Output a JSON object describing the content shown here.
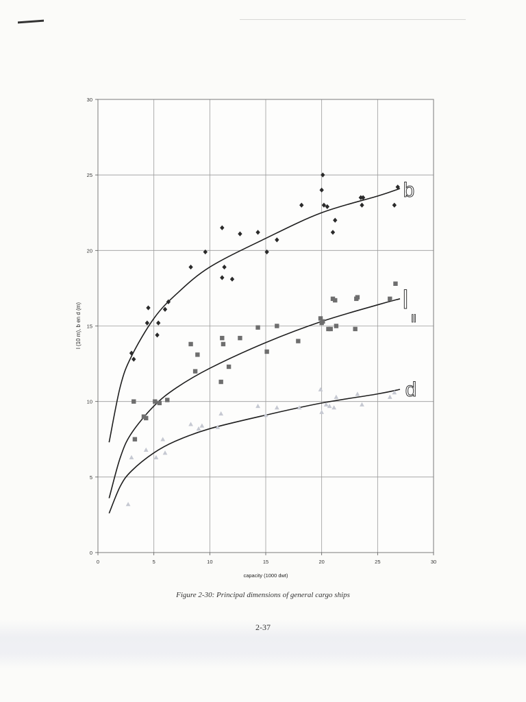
{
  "document": {
    "caption": "Figure 2-30: Principal dimensions of general cargo ships",
    "page_number": "2-37"
  },
  "chart_data": {
    "type": "scatter",
    "title": "",
    "xlabel": "capacity (1000 dwt)",
    "ylabel": "l (10 m), b en d (m)",
    "xlim": [
      0,
      30
    ],
    "ylim": [
      0,
      30
    ],
    "xticks": [
      0,
      5,
      10,
      15,
      20,
      25,
      30
    ],
    "yticks": [
      0,
      5,
      10,
      15,
      20,
      25,
      30
    ],
    "grid": true,
    "series": [
      {
        "name": "b",
        "marker": "diamond",
        "color": "#2a2a2a",
        "points": [
          [
            3.0,
            13.2
          ],
          [
            3.2,
            12.8
          ],
          [
            4.4,
            15.2
          ],
          [
            4.5,
            16.2
          ],
          [
            5.3,
            14.4
          ],
          [
            5.4,
            15.2
          ],
          [
            6.0,
            16.1
          ],
          [
            6.3,
            16.6
          ],
          [
            8.3,
            18.9
          ],
          [
            9.6,
            19.9
          ],
          [
            11.1,
            21.5
          ],
          [
            11.1,
            18.2
          ],
          [
            11.3,
            18.9
          ],
          [
            12.0,
            18.1
          ],
          [
            12.7,
            21.1
          ],
          [
            14.3,
            21.2
          ],
          [
            15.1,
            19.9
          ],
          [
            16.0,
            20.7
          ],
          [
            18.2,
            23.0
          ],
          [
            20.0,
            24.0
          ],
          [
            20.1,
            25.0
          ],
          [
            20.2,
            23.0
          ],
          [
            20.5,
            22.9
          ],
          [
            21.0,
            21.2
          ],
          [
            21.2,
            22.0
          ],
          [
            23.5,
            23.5
          ],
          [
            23.6,
            23.0
          ],
          [
            23.7,
            23.5
          ],
          [
            26.5,
            23.0
          ],
          [
            26.8,
            24.2
          ]
        ],
        "fit": [
          [
            1,
            7.3
          ],
          [
            2,
            11.0
          ],
          [
            3,
            13.0
          ],
          [
            5,
            15.5
          ],
          [
            7,
            17.1
          ],
          [
            10,
            18.9
          ],
          [
            15,
            20.8
          ],
          [
            20,
            22.5
          ],
          [
            25,
            23.6
          ],
          [
            27,
            24.1
          ]
        ]
      },
      {
        "name": "l",
        "marker": "square",
        "color": "#6e6e6e",
        "points": [
          [
            3.2,
            10.0
          ],
          [
            3.3,
            7.5
          ],
          [
            4.1,
            9.0
          ],
          [
            4.3,
            8.9
          ],
          [
            5.1,
            10.0
          ],
          [
            5.5,
            9.9
          ],
          [
            6.2,
            10.1
          ],
          [
            8.3,
            13.8
          ],
          [
            8.7,
            12.0
          ],
          [
            8.9,
            13.1
          ],
          [
            11.0,
            11.3
          ],
          [
            11.1,
            14.2
          ],
          [
            11.2,
            13.8
          ],
          [
            11.7,
            12.3
          ],
          [
            12.7,
            14.2
          ],
          [
            14.3,
            14.9
          ],
          [
            15.1,
            13.3
          ],
          [
            16.0,
            15.0
          ],
          [
            17.9,
            14.0
          ],
          [
            19.9,
            15.5
          ],
          [
            20.0,
            15.2
          ],
          [
            20.1,
            15.3
          ],
          [
            20.6,
            14.8
          ],
          [
            20.8,
            14.8
          ],
          [
            21.0,
            16.8
          ],
          [
            21.2,
            16.7
          ],
          [
            21.3,
            15.0
          ],
          [
            23.0,
            14.8
          ],
          [
            23.1,
            16.8
          ],
          [
            23.2,
            16.9
          ],
          [
            26.1,
            16.8
          ],
          [
            26.6,
            17.8
          ]
        ],
        "fit": [
          [
            1,
            3.6
          ],
          [
            2,
            6.3
          ],
          [
            3,
            7.9
          ],
          [
            5,
            9.7
          ],
          [
            7,
            10.9
          ],
          [
            10,
            12.2
          ],
          [
            15,
            13.9
          ],
          [
            20,
            15.3
          ],
          [
            25,
            16.4
          ],
          [
            27,
            16.8
          ]
        ]
      },
      {
        "name": "d",
        "marker": "triangle",
        "color": "#c6c9d2",
        "points": [
          [
            2.7,
            3.2
          ],
          [
            3.0,
            6.3
          ],
          [
            4.3,
            6.8
          ],
          [
            5.2,
            6.3
          ],
          [
            5.8,
            7.5
          ],
          [
            6.0,
            6.6
          ],
          [
            8.3,
            8.5
          ],
          [
            9.0,
            8.2
          ],
          [
            9.3,
            8.4
          ],
          [
            10.7,
            8.3
          ],
          [
            11.0,
            9.2
          ],
          [
            14.3,
            9.7
          ],
          [
            15.0,
            9.1
          ],
          [
            16.0,
            9.6
          ],
          [
            18.0,
            9.6
          ],
          [
            19.9,
            10.8
          ],
          [
            20.0,
            9.3
          ],
          [
            20.4,
            9.8
          ],
          [
            20.7,
            9.7
          ],
          [
            21.1,
            9.6
          ],
          [
            21.3,
            10.3
          ],
          [
            23.2,
            10.5
          ],
          [
            23.6,
            9.8
          ],
          [
            26.1,
            10.3
          ],
          [
            26.5,
            10.6
          ]
        ],
        "fit": [
          [
            1,
            2.6
          ],
          [
            2,
            4.4
          ],
          [
            3,
            5.4
          ],
          [
            5,
            6.6
          ],
          [
            7,
            7.4
          ],
          [
            10,
            8.2
          ],
          [
            15,
            9.1
          ],
          [
            20,
            9.9
          ],
          [
            25,
            10.5
          ],
          [
            27,
            10.8
          ]
        ]
      }
    ]
  }
}
